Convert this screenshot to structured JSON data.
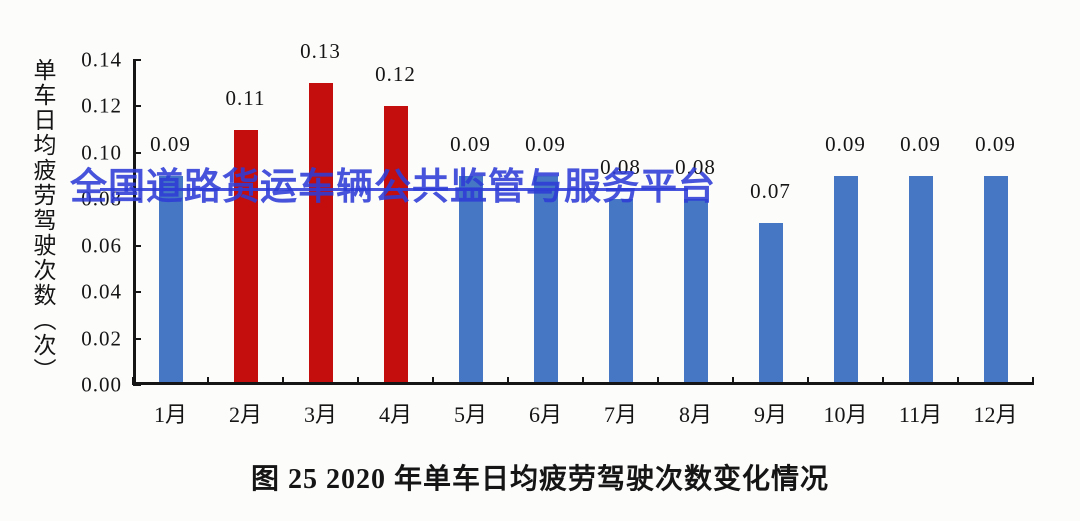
{
  "page": {
    "background": "#fcfcfb"
  },
  "watermark": {
    "text": "全国道路货运车辆公共监管与服务平台",
    "color": "#2e3cd6"
  },
  "chart_data": {
    "type": "bar",
    "title": "图 25 2020 年单车日均疲劳驾驶次数变化情况",
    "ylabel": "单车日均疲劳驾驶次数（次）",
    "xlabel": "",
    "categories": [
      "1月",
      "2月",
      "3月",
      "4月",
      "5月",
      "6月",
      "7月",
      "8月",
      "9月",
      "10月",
      "11月",
      "12月"
    ],
    "values": [
      0.09,
      0.11,
      0.13,
      0.12,
      0.09,
      0.09,
      0.08,
      0.08,
      0.07,
      0.09,
      0.09,
      0.09
    ],
    "value_labels": [
      "0.09",
      "0.11",
      "0.13",
      "0.12",
      "0.09",
      "0.09",
      "0.08",
      "0.08",
      "0.07",
      "0.09",
      "0.09",
      "0.09"
    ],
    "ylim": [
      0,
      0.14
    ],
    "y_ticks": [
      "0.14",
      "0.12",
      "0.10",
      "0.08",
      "0.06",
      "0.04",
      "0.02",
      "0.00"
    ],
    "grid": false,
    "legend_position": "none",
    "colors": {
      "bar_default": "#4577C5",
      "bar_highlight": "#C40D0D",
      "axis": "#151515"
    },
    "bar_colors": [
      "#4577C5",
      "#C40D0D",
      "#C40D0D",
      "#C40D0D",
      "#4577C5",
      "#4577C5",
      "#4577C5",
      "#4577C5",
      "#4577C5",
      "#4577C5",
      "#4577C5",
      "#4577C5"
    ]
  }
}
